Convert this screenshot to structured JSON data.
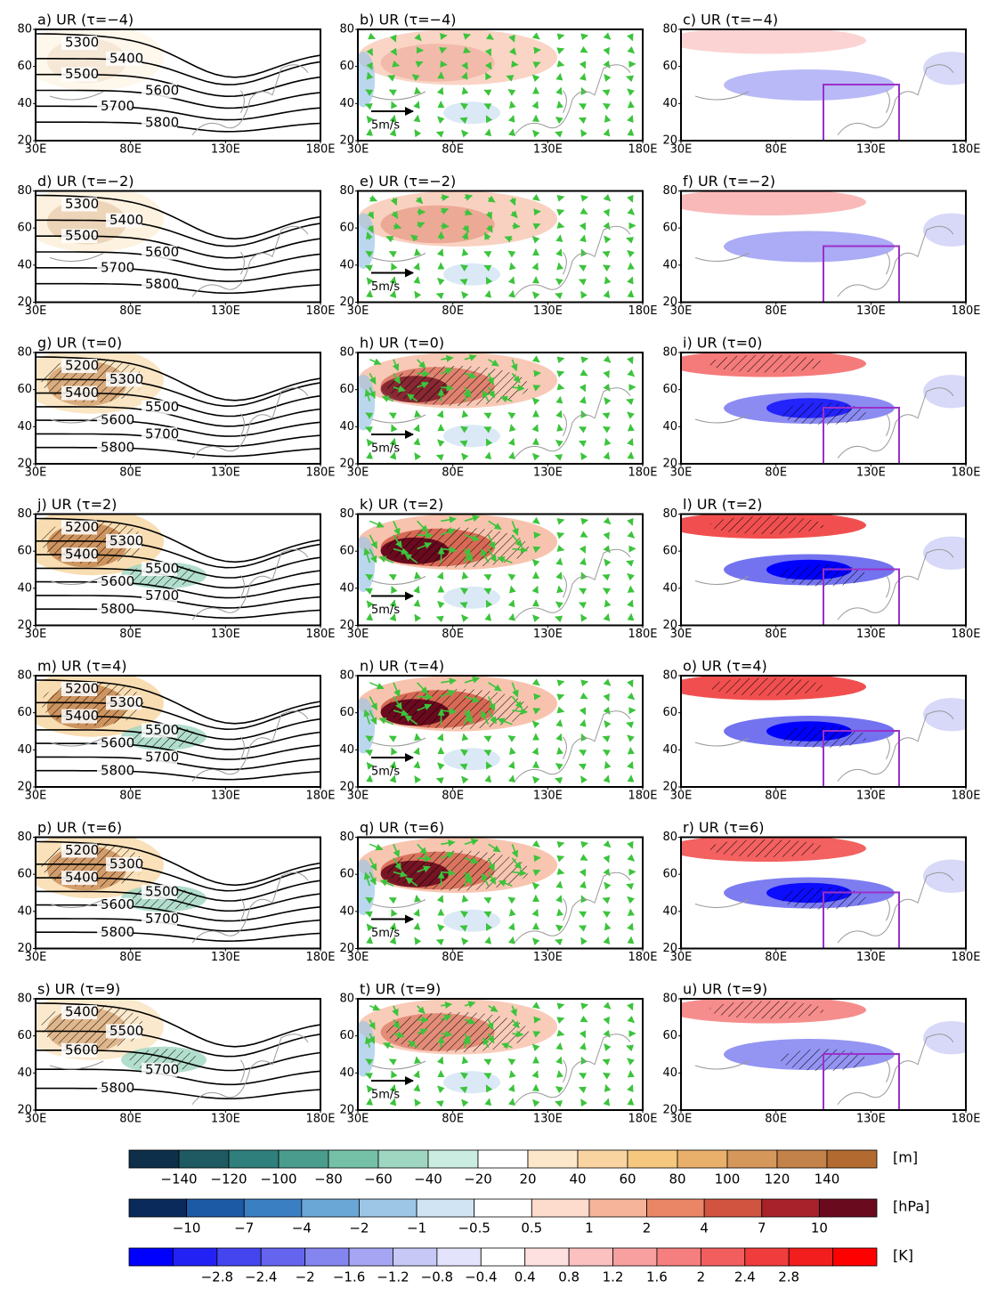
{
  "axes": {
    "yticks": [
      "20",
      "40",
      "60",
      "80"
    ],
    "xticks": [
      "30E",
      "80E",
      "130E",
      "180E"
    ]
  },
  "rows": [
    {
      "left": {
        "label": "a) UR (τ=−4)",
        "contour_labels": [
          "5300",
          "5400",
          "5500",
          "5600",
          "5700",
          "5800"
        ]
      },
      "middle": {
        "label": "b) UR (τ=−4)",
        "vector_ref": "5m/s"
      },
      "right": {
        "label": "c) UR (τ=−4)"
      }
    },
    {
      "left": {
        "label": "d) UR (τ=−2)",
        "contour_labels": [
          "5300",
          "5400",
          "5500",
          "5600",
          "5700",
          "5800"
        ]
      },
      "middle": {
        "label": "e) UR (τ=−2)",
        "vector_ref": "5m/s"
      },
      "right": {
        "label": "f) UR (τ=−2)"
      }
    },
    {
      "left": {
        "label": "g) UR (τ=0)",
        "contour_labels": [
          "5200",
          "5300",
          "5400",
          "5500",
          "5600",
          "5700",
          "5800"
        ]
      },
      "middle": {
        "label": "h) UR (τ=0)",
        "vector_ref": "5m/s"
      },
      "right": {
        "label": "i) UR (τ=0)"
      }
    },
    {
      "left": {
        "label": "j) UR (τ=2)",
        "contour_labels": [
          "5200",
          "5300",
          "5400",
          "5500",
          "5600",
          "5700",
          "5800"
        ]
      },
      "middle": {
        "label": "k) UR (τ=2)",
        "vector_ref": "5m/s"
      },
      "right": {
        "label": "l) UR (τ=2)"
      }
    },
    {
      "left": {
        "label": "m) UR (τ=4)",
        "contour_labels": [
          "5200",
          "5300",
          "5400",
          "5500",
          "5600",
          "5700",
          "5800"
        ]
      },
      "middle": {
        "label": "n) UR (τ=4)",
        "vector_ref": "5m/s"
      },
      "right": {
        "label": "o) UR (τ=4)"
      }
    },
    {
      "left": {
        "label": "p) UR (τ=6)",
        "contour_labels": [
          "5200",
          "5300",
          "5400",
          "5500",
          "5600",
          "5700",
          "5800"
        ]
      },
      "middle": {
        "label": "q) UR (τ=6)",
        "vector_ref": "5m/s"
      },
      "right": {
        "label": "r) UR (τ=6)"
      }
    },
    {
      "left": {
        "label": "s) UR (τ=9)",
        "contour_labels": [
          "5400",
          "5500",
          "5600",
          "5700",
          "5800"
        ]
      },
      "middle": {
        "label": "t) UR (τ=9)",
        "vector_ref": "5m/s"
      },
      "right": {
        "label": "u) UR (τ=9)"
      }
    }
  ],
  "colorbars": [
    {
      "unit": "[m]",
      "labels": [
        "−140",
        "−120",
        "−100",
        "−80",
        "−60",
        "−40",
        "−20",
        "20",
        "40",
        "60",
        "80",
        "100",
        "120",
        "140"
      ],
      "colors": [
        "#0d2f4a",
        "#1f5a63",
        "#2f7f7c",
        "#4a9c8c",
        "#74c1a7",
        "#9fd6c1",
        "#cbece0",
        "#ffffff",
        "#fde7cb",
        "#f9d3a0",
        "#f5c77f",
        "#e8b06a",
        "#d5975a",
        "#c3824a",
        "#b26a30"
      ]
    },
    {
      "unit": "[hPa]",
      "labels": [
        "−10",
        "−7",
        "−4",
        "−2",
        "−1",
        "−0.5",
        "0.5",
        "1",
        "2",
        "4",
        "7",
        "10"
      ],
      "colors": [
        "#0a2a5c",
        "#1c5aa6",
        "#3a7fc1",
        "#6aa6d6",
        "#9dc6e6",
        "#d1e4f3",
        "#ffffff",
        "#fddccd",
        "#f6b49a",
        "#ea8566",
        "#d0543f",
        "#a7222a",
        "#6a0a1e"
      ]
    },
    {
      "unit": "[K]",
      "labels": [
        "−2.8",
        "−2.4",
        "−2",
        "−1.6",
        "−1.2",
        "−0.8",
        "−0.4",
        "0.4",
        "0.8",
        "1.2",
        "1.6",
        "2",
        "2.4",
        "2.8"
      ],
      "colors": [
        "#0000ff",
        "#2222f5",
        "#4545f0",
        "#6464ee",
        "#8585f0",
        "#a5a5f3",
        "#c8c8f7",
        "#e3e3fb",
        "#ffffff",
        "#fde0e0",
        "#fbc0c0",
        "#f8a0a0",
        "#f57f7f",
        "#f25e5e",
        "#f03c3c",
        "#f21d1d",
        "#ff0000"
      ]
    }
  ]
}
